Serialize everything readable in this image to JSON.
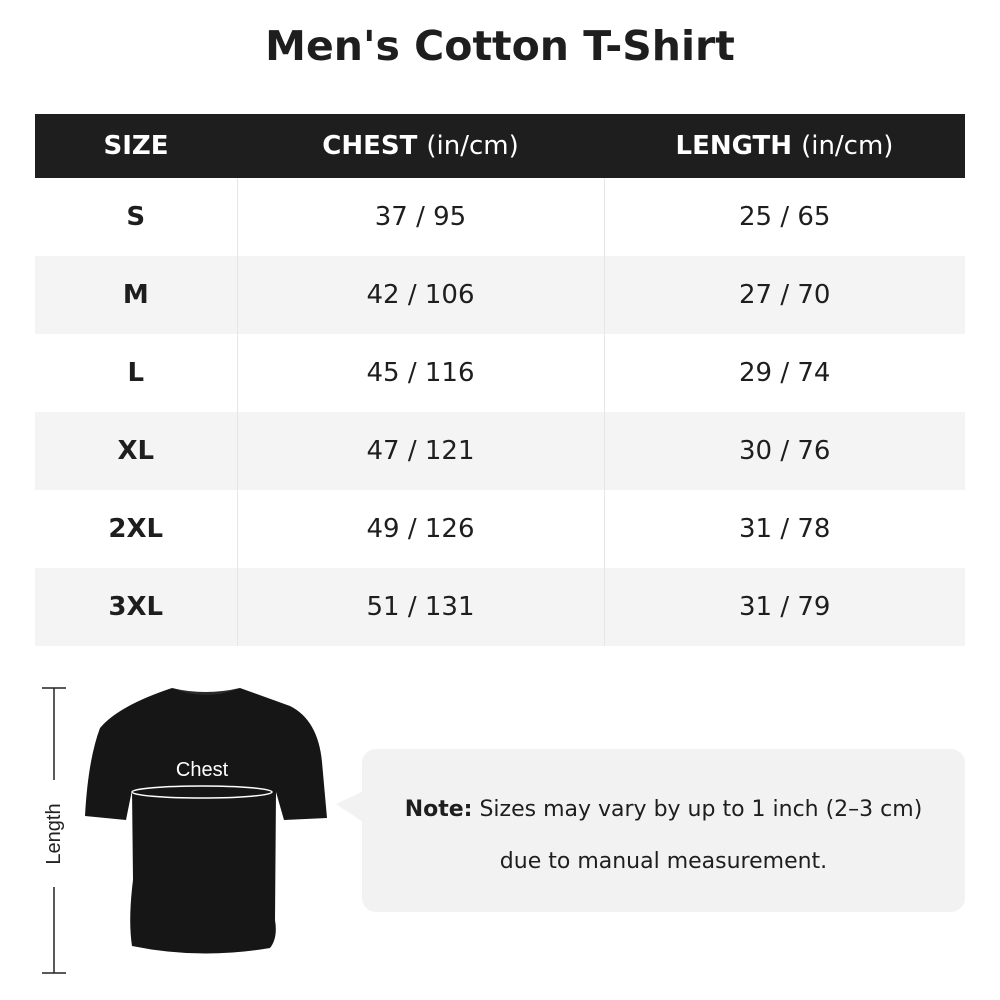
{
  "title": "Men's Cotton T-Shirt",
  "table": {
    "headers": [
      {
        "label": "SIZE",
        "unit": ""
      },
      {
        "label": "CHEST",
        "unit": "(in/cm)"
      },
      {
        "label": "LENGTH",
        "unit": "(in/cm)"
      }
    ],
    "rows": [
      {
        "size": "S",
        "chest": "37 / 95",
        "length": "25 / 65"
      },
      {
        "size": "M",
        "chest": "42 / 106",
        "length": "27 / 70"
      },
      {
        "size": "L",
        "chest": "45 / 116",
        "length": "29 / 74"
      },
      {
        "size": "XL",
        "chest": "47 / 121",
        "length": "30 / 76"
      },
      {
        "size": "2XL",
        "chest": "49 / 126",
        "length": "31 / 78"
      },
      {
        "size": "3XL",
        "chest": "51 / 131",
        "length": "31 / 79"
      }
    ]
  },
  "diagram": {
    "chest_label": "Chest",
    "length_label": "Length"
  },
  "note": {
    "label": "Note:",
    "line1": "Sizes may vary by up to 1 inch (2–3 cm)",
    "line2": "due to manual measurement."
  },
  "colors": {
    "header_bg": "#1e1e1e",
    "alt_row": "#f4f4f4",
    "note_bg": "#f2f2f2"
  }
}
